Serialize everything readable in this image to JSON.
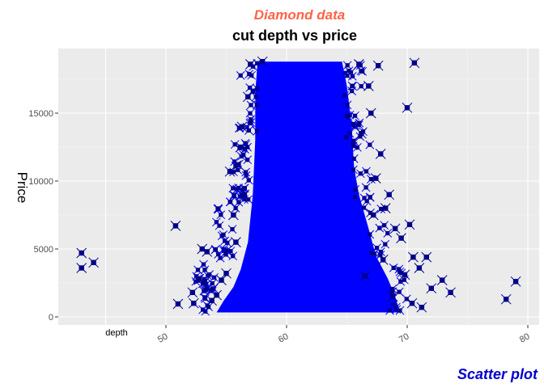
{
  "chart_data": {
    "type": "scatter",
    "subtitle": "Diamond data",
    "title": "cut depth vs price",
    "xlabel": "depth",
    "ylabel": "Price",
    "caption": "Scatter plot",
    "xlim": [
      43,
      79
    ],
    "ylim": [
      0,
      18823
    ],
    "x_ticks": [
      50,
      60,
      70,
      80
    ],
    "x_tick_labels": [
      "50",
      "60",
      "70",
      "80"
    ],
    "y_ticks": [
      0,
      5000,
      10000,
      15000
    ],
    "y_tick_labels": [
      "0",
      "5000",
      "10000",
      "15000"
    ],
    "grid": true,
    "legend": "none",
    "colors": {
      "subtitle": "#FF6347",
      "caption": "#0000CD",
      "point_fill": "#0000FF",
      "point_outline": "#00008B",
      "panel": "#EBEBEB",
      "grid": "#FFFFFF"
    },
    "core_region": {
      "depth_range": [
        57.0,
        65.5
      ],
      "price_range": [
        326,
        18800
      ]
    },
    "outliers": [
      {
        "x": 43.0,
        "y": 3600
      },
      {
        "x": 43.0,
        "y": 4700
      },
      {
        "x": 44.0,
        "y": 4000
      },
      {
        "x": 50.8,
        "y": 6700
      },
      {
        "x": 51.0,
        "y": 950
      },
      {
        "x": 52.2,
        "y": 1800
      },
      {
        "x": 52.3,
        "y": 1000
      },
      {
        "x": 52.7,
        "y": 2800
      },
      {
        "x": 53.0,
        "y": 5000
      },
      {
        "x": 53.1,
        "y": 2500
      },
      {
        "x": 53.4,
        "y": 4800
      },
      {
        "x": 53.8,
        "y": 1200
      },
      {
        "x": 54.2,
        "y": 1600
      },
      {
        "x": 55.0,
        "y": 3200
      },
      {
        "x": 55.3,
        "y": 10700
      },
      {
        "x": 55.6,
        "y": 7500
      },
      {
        "x": 56.0,
        "y": 11200
      },
      {
        "x": 56.3,
        "y": 14000
      },
      {
        "x": 56.8,
        "y": 16200
      },
      {
        "x": 57.0,
        "y": 18600
      },
      {
        "x": 58.0,
        "y": 18800
      },
      {
        "x": 66.0,
        "y": 18600
      },
      {
        "x": 66.8,
        "y": 17000
      },
      {
        "x": 67.0,
        "y": 15000
      },
      {
        "x": 67.6,
        "y": 18500
      },
      {
        "x": 67.8,
        "y": 12000
      },
      {
        "x": 68.5,
        "y": 9000
      },
      {
        "x": 69.0,
        "y": 6500
      },
      {
        "x": 69.5,
        "y": 5800
      },
      {
        "x": 70.0,
        "y": 15400
      },
      {
        "x": 70.6,
        "y": 18700
      },
      {
        "x": 70.2,
        "y": 6800
      },
      {
        "x": 70.5,
        "y": 4400
      },
      {
        "x": 71.0,
        "y": 3600
      },
      {
        "x": 71.2,
        "y": 700
      },
      {
        "x": 71.6,
        "y": 4400
      },
      {
        "x": 72.0,
        "y": 2100
      },
      {
        "x": 72.9,
        "y": 2700
      },
      {
        "x": 73.6,
        "y": 1800
      },
      {
        "x": 78.2,
        "y": 1300
      },
      {
        "x": 79.0,
        "y": 2600
      },
      {
        "x": 66.5,
        "y": 3000
      },
      {
        "x": 67.2,
        "y": 7500
      },
      {
        "x": 68.0,
        "y": 4200
      },
      {
        "x": 68.8,
        "y": 1500
      },
      {
        "x": 69.8,
        "y": 3100
      },
      {
        "x": 70.4,
        "y": 1000
      },
      {
        "x": 56.5,
        "y": 9000
      },
      {
        "x": 55.8,
        "y": 5500
      },
      {
        "x": 54.6,
        "y": 2700
      },
      {
        "x": 56.2,
        "y": 12500
      },
      {
        "x": 66.2,
        "y": 13500
      },
      {
        "x": 67.4,
        "y": 10200
      },
      {
        "x": 68.2,
        "y": 8000
      }
    ]
  }
}
